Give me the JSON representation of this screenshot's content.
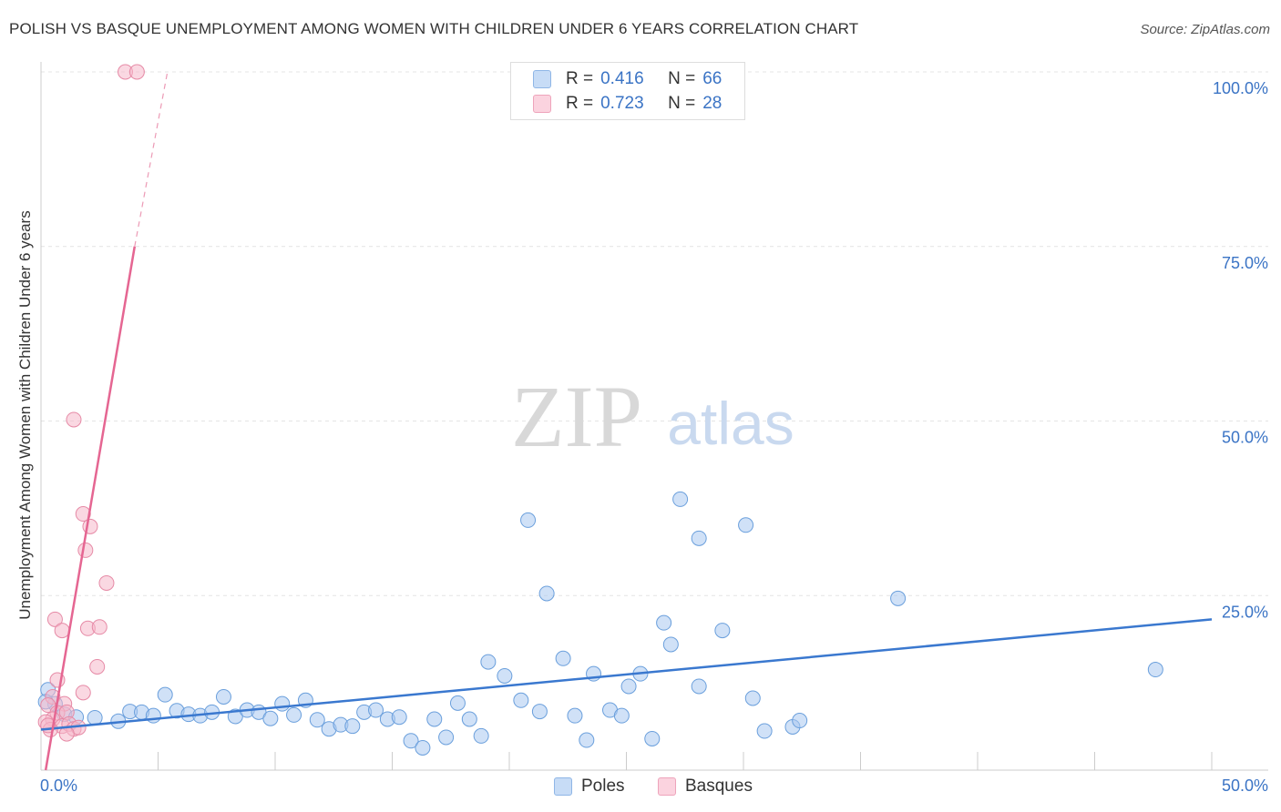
{
  "title": "POLISH VS BASQUE UNEMPLOYMENT AMONG WOMEN WITH CHILDREN UNDER 6 YEARS CORRELATION CHART",
  "source": "Source: ZipAtlas.com",
  "watermark": {
    "zip": "ZIP",
    "atlas": "atlas"
  },
  "legend_top": {
    "rows": [
      {
        "r_label": "R =",
        "r_value": "0.416",
        "n_label": "N =",
        "n_value": "66",
        "color": "#a9c8f0"
      },
      {
        "r_label": "R =",
        "r_value": "0.723",
        "n_label": "N =",
        "n_value": "28",
        "color": "#f5b8cb"
      }
    ]
  },
  "legend_bottom": [
    {
      "label": "Poles",
      "color": "#a9c8f0"
    },
    {
      "label": "Basques",
      "color": "#f5b8cb"
    }
  ],
  "chart_data": {
    "type": "scatter",
    "title": "POLISH VS BASQUE UNEMPLOYMENT AMONG WOMEN WITH CHILDREN UNDER 6 YEARS CORRELATION CHART",
    "xlabel": "",
    "ylabel": "Unemployment Among Women with Children Under 6 years",
    "xlim": [
      0,
      50
    ],
    "ylim": [
      0,
      100
    ],
    "x_tick_labels": [
      "0.0%",
      "50.0%"
    ],
    "y_tick_labels": [
      "100.0%",
      "75.0%",
      "50.0%",
      "25.0%"
    ],
    "y_tick_values": [
      100,
      75,
      50,
      25
    ],
    "grid": true,
    "series": [
      {
        "name": "Poles",
        "color": "#a9c8f0",
        "edge": "#6a9fdc",
        "trend_color": "#3a78cf",
        "trend": {
          "x0": 0,
          "y0": 5.8,
          "x1": 50,
          "y1": 21.6
        },
        "points": [
          [
            0.3,
            11.5
          ],
          [
            0.6,
            9.5
          ],
          [
            1.0,
            8.0
          ],
          [
            1.5,
            7.6
          ],
          [
            2.3,
            7.5
          ],
          [
            3.3,
            7.0
          ],
          [
            3.8,
            8.4
          ],
          [
            4.3,
            8.3
          ],
          [
            4.8,
            7.8
          ],
          [
            5.3,
            10.8
          ],
          [
            5.8,
            8.5
          ],
          [
            6.3,
            8.0
          ],
          [
            6.8,
            7.8
          ],
          [
            7.3,
            8.3
          ],
          [
            7.8,
            10.5
          ],
          [
            8.3,
            7.7
          ],
          [
            8.8,
            8.6
          ],
          [
            9.3,
            8.3
          ],
          [
            9.8,
            7.4
          ],
          [
            10.3,
            9.5
          ],
          [
            10.8,
            7.9
          ],
          [
            11.3,
            10.0
          ],
          [
            11.8,
            7.2
          ],
          [
            12.3,
            5.9
          ],
          [
            12.8,
            6.5
          ],
          [
            13.3,
            6.3
          ],
          [
            13.8,
            8.3
          ],
          [
            14.3,
            8.6
          ],
          [
            14.8,
            7.3
          ],
          [
            15.3,
            7.6
          ],
          [
            15.8,
            4.2
          ],
          [
            16.3,
            3.2
          ],
          [
            16.8,
            7.3
          ],
          [
            17.3,
            4.7
          ],
          [
            17.8,
            9.6
          ],
          [
            18.3,
            7.3
          ],
          [
            18.8,
            4.9
          ],
          [
            19.1,
            15.5
          ],
          [
            19.8,
            13.5
          ],
          [
            20.5,
            10.0
          ],
          [
            20.8,
            35.8
          ],
          [
            21.3,
            8.4
          ],
          [
            21.6,
            25.3
          ],
          [
            22.3,
            16.0
          ],
          [
            22.8,
            7.8
          ],
          [
            23.3,
            4.3
          ],
          [
            23.6,
            13.8
          ],
          [
            24.3,
            8.6
          ],
          [
            24.8,
            7.8
          ],
          [
            25.1,
            12.0
          ],
          [
            25.6,
            13.8
          ],
          [
            26.1,
            4.5
          ],
          [
            26.6,
            21.1
          ],
          [
            26.9,
            18.0
          ],
          [
            27.3,
            38.8
          ],
          [
            28.1,
            33.2
          ],
          [
            28.1,
            12.0
          ],
          [
            29.1,
            20.0
          ],
          [
            30.1,
            35.1
          ],
          [
            30.4,
            10.3
          ],
          [
            30.9,
            5.6
          ],
          [
            32.1,
            6.2
          ],
          [
            32.4,
            7.1
          ],
          [
            36.6,
            24.6
          ],
          [
            47.6,
            14.4
          ],
          [
            0.2,
            9.8
          ]
        ]
      },
      {
        "name": "Basques",
        "color": "#f5b8cb",
        "edge": "#e68aa6",
        "trend_color": "#e56692",
        "trend": {
          "x0": 0.2,
          "y0": 0,
          "x1": 4.0,
          "y1": 75
        },
        "trend_dashed": {
          "x0": 4.0,
          "y0": 75,
          "x1": 5.4,
          "y1": 100
        },
        "points": [
          [
            3.6,
            100
          ],
          [
            4.1,
            100
          ],
          [
            1.4,
            50.2
          ],
          [
            1.8,
            36.7
          ],
          [
            2.1,
            34.9
          ],
          [
            1.9,
            31.5
          ],
          [
            2.8,
            26.8
          ],
          [
            0.6,
            21.6
          ],
          [
            0.9,
            20.0
          ],
          [
            2.0,
            20.3
          ],
          [
            2.5,
            20.5
          ],
          [
            2.4,
            14.8
          ],
          [
            1.8,
            11.1
          ],
          [
            0.7,
            12.9
          ],
          [
            0.5,
            10.5
          ],
          [
            1.0,
            9.5
          ],
          [
            0.3,
            9.3
          ],
          [
            0.7,
            8.2
          ],
          [
            1.1,
            8.3
          ],
          [
            0.5,
            7.3
          ],
          [
            0.2,
            6.9
          ],
          [
            0.9,
            6.3
          ],
          [
            1.2,
            6.6
          ],
          [
            1.4,
            5.9
          ],
          [
            0.4,
            5.8
          ],
          [
            1.6,
            6.1
          ],
          [
            1.1,
            5.2
          ],
          [
            0.3,
            6.4
          ]
        ]
      }
    ]
  }
}
